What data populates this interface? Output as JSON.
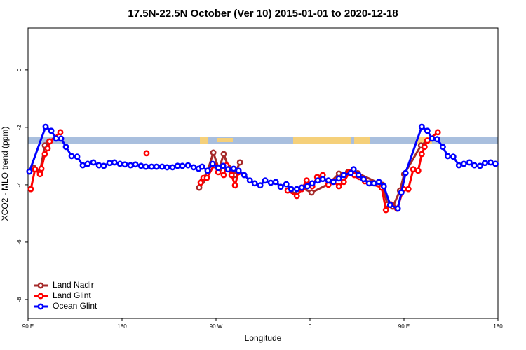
{
  "chart_data": {
    "type": "line",
    "title": "17.5N-22.5N October (Ver 10)   2015-01-01 to 2020-12-18",
    "x_label": "Longitude",
    "y_label": "XCO2 - MLO trend (ppm)",
    "xlim": [
      90,
      540
    ],
    "ylim": [
      -8.66,
      1.46
    ],
    "xticks": [
      {
        "value": 90,
        "label": "90 E"
      },
      180,
      {
        "value": 270,
        "label": "90 W"
      },
      {
        "value": 360,
        "label": "0"
      },
      {
        "value": 450,
        "label": "90 E"
      },
      {
        "value": 540,
        "label": "180"
      }
    ],
    "yticks": [
      0,
      -2,
      -4,
      -6,
      -8
    ],
    "legend": "bottom-left",
    "series": [
      {
        "name": "Land Nadir",
        "color": "#a52a2a",
        "x": [
          91.3,
          95.4,
          101.4,
          106.1,
          110.2,
          180,
          253.9,
          256.7,
          262.0,
          267.4,
          272.8,
          277.4,
          282.2,
          287.6,
          292.9,
          320,
          345.4,
          352.1,
          361.5,
          377.6,
          387.7,
          396.4,
          405.8,
          429.4,
          434.1,
          439.4,
          446.2,
          450.2,
          466.3,
          471.7
        ],
        "values": [
          -3.54,
          -3.41,
          -3.56,
          -2.63,
          -2.5,
          null,
          -4.1,
          -3.88,
          -3.51,
          -2.88,
          -3.46,
          -2.93,
          -3.41,
          -3.66,
          -3.22,
          null,
          -4.2,
          -4.1,
          -4.27,
          -3.98,
          -3.61,
          -3.56,
          -3.6,
          -4.0,
          -4.68,
          -4.76,
          -4.2,
          -3.63,
          -2.63,
          -2.48
        ]
      },
      {
        "name": "Land Glint",
        "color": "#ff0000",
        "x": [
          92.7,
          96.7,
          101.4,
          102.8,
          106.1,
          108.8,
          110.8,
          120.9,
          160,
          203.5,
          230,
          255.3,
          258.0,
          261.3,
          268.0,
          272.1,
          277.4,
          280.1,
          284.9,
          288.2,
          291.6,
          315,
          338.6,
          347.4,
          352.1,
          356.8,
          362.2,
          366.9,
          372.2,
          377.6,
          382.3,
          387.7,
          392.4,
          397.8,
          402.5,
          407.2,
          412.6,
          417.3,
          428.7,
          432.7,
          437.4,
          443.5,
          449.5,
          454.2,
          458.9,
          463.6,
          467.0,
          469.7,
          472.4,
          482.4
        ],
        "values": [
          -4.15,
          -3.46,
          -3.63,
          -3.44,
          -2.93,
          -2.73,
          -2.49,
          -2.17,
          null,
          -2.9,
          null,
          -3.93,
          -3.76,
          -3.76,
          -3.32,
          -3.56,
          -3.66,
          -3.32,
          -3.66,
          -4.02,
          -3.56,
          null,
          -4.2,
          -4.39,
          -4.15,
          -3.85,
          -4.05,
          -3.73,
          -3.66,
          -4.0,
          -3.88,
          -4.05,
          -3.9,
          -3.56,
          -3.66,
          -3.73,
          -3.88,
          -3.95,
          -4.1,
          -4.88,
          -4.68,
          -4.83,
          -4.15,
          -4.15,
          -3.46,
          -3.51,
          -2.93,
          -2.68,
          -2.46,
          -2.17
        ]
      },
      {
        "name": "Ocean Glint",
        "color": "#0000ff",
        "x": [
          91.3,
          106.8,
          112.2,
          116.9,
          121.6,
          126.3,
          131.7,
          137.0,
          142.4,
          147.1,
          152.5,
          157.9,
          162.6,
          168.0,
          172.7,
          178.0,
          182.7,
          188.1,
          192.8,
          198.2,
          202.9,
          208.3,
          213.0,
          218.4,
          223.1,
          228.4,
          233.1,
          237.8,
          243.2,
          248.6,
          253.3,
          256.7,
          262.0,
          266.7,
          272.1,
          276.8,
          281.5,
          286.9,
          291.6,
          297.0,
          302.4,
          307.1,
          312.4,
          317.1,
          322.5,
          327.2,
          331.9,
          337.3,
          342.0,
          347.4,
          352.1,
          357.5,
          362.2,
          367.5,
          372.2,
          377.6,
          382.3,
          387.7,
          392.4,
          399.1,
          401.8,
          406.5,
          411.2,
          416.6,
          421.3,
          426.0,
          430.7,
          436.8,
          444.1,
          447.5,
          451.5,
          467.0,
          472.4,
          476.9,
          481.7,
          487.2,
          491.9,
          497.2,
          502.6,
          507.3,
          512.7,
          517.4,
          522.8,
          527.5,
          532.9,
          537.6
        ],
        "values": [
          -3.54,
          -1.98,
          -2.12,
          -2.39,
          -2.39,
          -2.68,
          -3.0,
          -3.02,
          -3.32,
          -3.27,
          -3.22,
          -3.32,
          -3.34,
          -3.24,
          -3.22,
          -3.27,
          -3.29,
          -3.32,
          -3.29,
          -3.34,
          -3.37,
          -3.37,
          -3.37,
          -3.37,
          -3.39,
          -3.39,
          -3.34,
          -3.34,
          -3.32,
          -3.39,
          -3.44,
          -3.37,
          -3.51,
          -3.27,
          -3.41,
          -3.34,
          -3.46,
          -3.44,
          -3.51,
          -3.66,
          -3.85,
          -3.95,
          -4.02,
          -3.85,
          -3.93,
          -3.9,
          -4.07,
          -3.98,
          -4.15,
          -4.15,
          -4.1,
          -4.05,
          -3.95,
          -3.85,
          -3.8,
          -3.85,
          -3.9,
          -3.78,
          -3.66,
          -3.59,
          -3.46,
          -3.66,
          -3.8,
          -3.95,
          -3.95,
          -3.9,
          -4.05,
          -4.7,
          -4.83,
          -4.27,
          -3.59,
          -1.98,
          -2.12,
          -2.39,
          -2.41,
          -2.68,
          -3.0,
          -3.02,
          -3.32,
          -3.27,
          -3.22,
          -3.32,
          -3.34,
          -3.24,
          -3.22,
          -3.27
        ]
      }
    ]
  }
}
